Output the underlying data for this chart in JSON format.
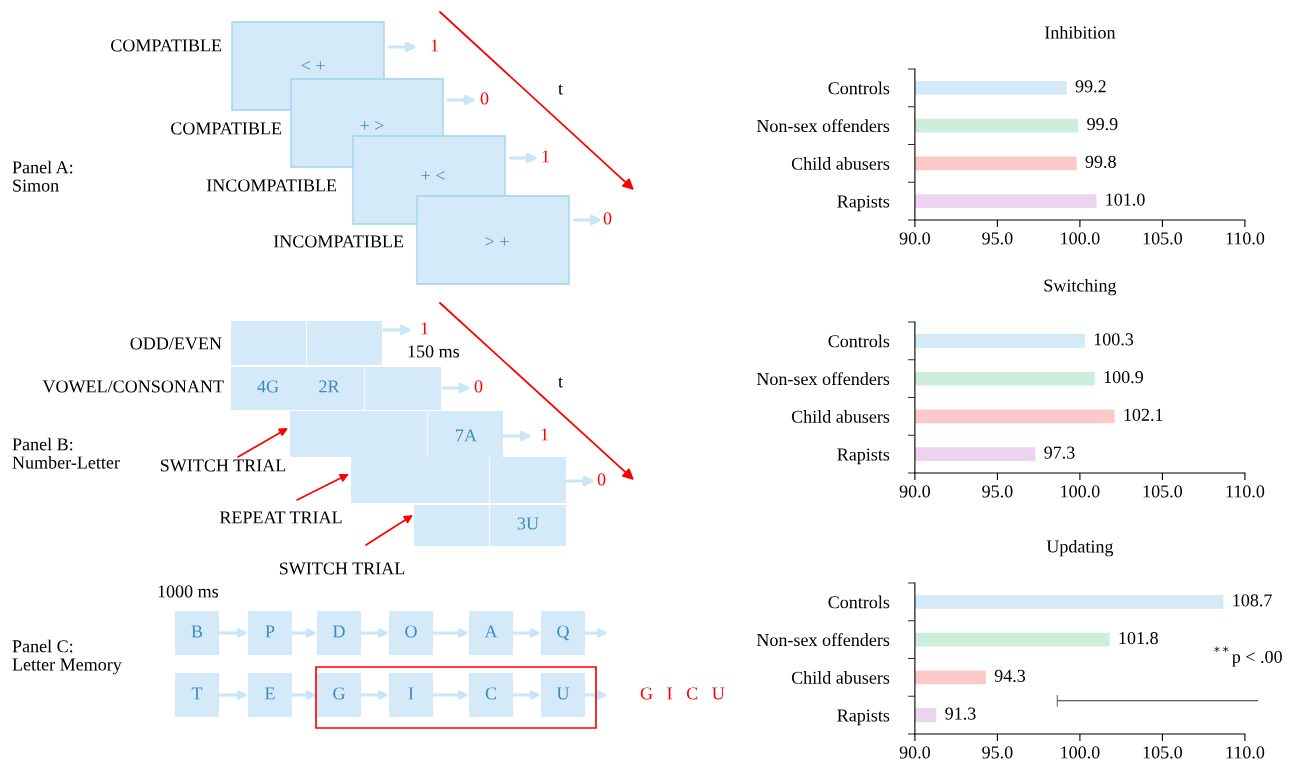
{
  "chart_data": [
    {
      "type": "other",
      "annotations": [
        "COMPATIBLE",
        "< +",
        "1",
        "COMPATIBLE",
        "+ >",
        "0",
        "INCOMPATIBLE",
        "+ <",
        "1",
        "INCOMPATIBLE",
        "> +",
        "0",
        "t",
        "Panel A:\nSimon",
        "ODD/EVEN",
        "1",
        "150 ms",
        "VOWEL/CONSONANT",
        "4G",
        "2R",
        "0",
        "t",
        "7A",
        "1",
        "Panel B:\nNumber-Letter",
        "SWITCH TRIAL",
        "0",
        "REPEAT TRIAL",
        "3U",
        "SWITCH TRIAL",
        "1000 ms",
        "B",
        "P",
        "D",
        "O",
        "A",
        "Q",
        "T",
        "E",
        "G",
        "I",
        "C",
        "U",
        "Panel C:\nLetter Memory",
        "G   I   C   U"
      ]
    },
    {
      "type": "bar",
      "orientation": "horizontal",
      "title": "Inhibition",
      "categories": [
        "Controls",
        "Non-sex offenders",
        "Child abusers",
        "Rapists"
      ],
      "values": [
        99.2,
        99.9,
        99.8,
        101.0
      ],
      "value_labels": [
        "99.2",
        "99.9",
        "99.8",
        "101.0"
      ],
      "colors": [
        "#d4eaf9",
        "#cdeedd",
        "#fcc9c9",
        "#ecd3f0"
      ],
      "xlim": [
        90,
        110
      ],
      "xticks": [
        {
          "value": 90,
          "label": "90.0"
        },
        {
          "value": 95,
          "label": "95.0"
        },
        {
          "value": 100,
          "label": "100.0"
        },
        {
          "value": 105,
          "label": "105.0"
        },
        {
          "value": 110,
          "label": "110.0"
        }
      ]
    },
    {
      "type": "bar",
      "orientation": "horizontal",
      "title": "Switching",
      "categories": [
        "Controls",
        "Non-sex offenders",
        "Child abusers",
        "Rapists"
      ],
      "values": [
        100.3,
        100.9,
        102.1,
        97.3
      ],
      "value_labels": [
        "100.3",
        "100.9",
        "102.1",
        "97.3"
      ],
      "colors": [
        "#d4eaf9",
        "#cdeedd",
        "#fcc9c9",
        "#ecd3f0"
      ],
      "xlim": [
        90,
        110
      ],
      "xticks": [
        {
          "value": 90,
          "label": "90.0"
        },
        {
          "value": 95,
          "label": "95.0"
        },
        {
          "value": 100,
          "label": "100.0"
        },
        {
          "value": 105,
          "label": "105.0"
        },
        {
          "value": 110,
          "label": "110.0"
        }
      ]
    },
    {
      "type": "bar",
      "orientation": "horizontal",
      "title": "Updating",
      "categories": [
        "Controls",
        "Non-sex offenders",
        "Child abusers",
        "Rapists"
      ],
      "values": [
        108.7,
        101.8,
        94.3,
        91.3
      ],
      "value_labels": [
        "108.7",
        "101.8",
        "94.3",
        "91.3"
      ],
      "colors": [
        "#d4eaf9",
        "#cdeedd",
        "#fcc9c9",
        "#ecd3f0"
      ],
      "xlim": [
        90,
        110
      ],
      "xticks": [
        {
          "value": 90,
          "label": "90.0"
        },
        {
          "value": 95,
          "label": "95.0"
        },
        {
          "value": 100,
          "label": "100.0"
        },
        {
          "value": 105,
          "label": "105.0"
        },
        {
          "value": 110,
          "label": "110.0"
        }
      ],
      "annotations": [
        "$^{**}$p < .00"
      ]
    }
  ]
}
